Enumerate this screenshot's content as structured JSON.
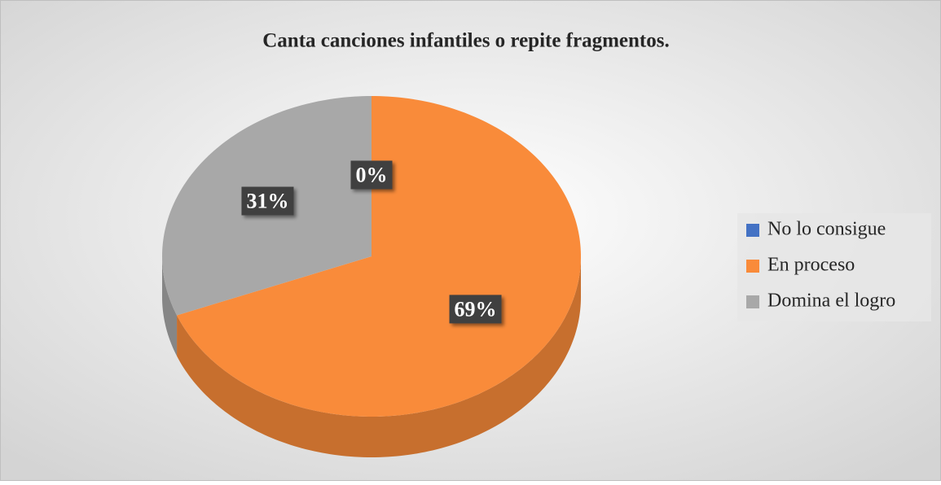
{
  "chart_data": {
    "type": "pie",
    "title": "Canta canciones infantiles o repite fragmentos.",
    "categories": [
      "No lo consigue",
      "En proceso",
      "Domina el logro"
    ],
    "values": [
      0,
      69,
      31
    ],
    "value_labels": [
      "0%",
      "69%",
      "31%"
    ],
    "colors": [
      "#4472c4",
      "#f98b3a",
      "#a8a8a8"
    ],
    "legend": "right"
  }
}
